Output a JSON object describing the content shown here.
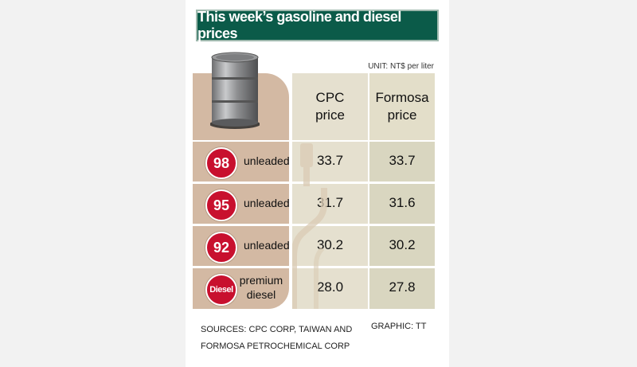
{
  "title": "This week’s gasoline and diesel prices",
  "unit": "UNIT: NT$ per liter",
  "headers": {
    "cpc": "CPC price",
    "formosa": "Formosa price"
  },
  "colors": {
    "title_bg": "#0b5b49",
    "badge_red": "#c8102e",
    "tan": "#d3b9a3",
    "column_light": "#e5e0cf",
    "column_dark": "#d9d6c0"
  },
  "chart_data": {
    "type": "table",
    "title": "This week’s gasoline and diesel prices",
    "unit": "UNIT: NT$ per liter",
    "columns": [
      "CPC price",
      "Formosa price"
    ],
    "rows": [
      {
        "badge": "98",
        "fuel": "unleaded",
        "cpc": "33.7",
        "formosa": "33.7"
      },
      {
        "badge": "95",
        "fuel": "unleaded",
        "cpc": "31.7",
        "formosa": "31.6"
      },
      {
        "badge": "92",
        "fuel": "unleaded",
        "cpc": "30.2",
        "formosa": "30.2"
      },
      {
        "badge": "Diesel",
        "fuel": "premium diesel",
        "cpc": "28.0",
        "formosa": "27.8"
      }
    ]
  },
  "footer": {
    "sources_line1": "SOURCES: CPC CORP, TAIWAN AND",
    "sources_line2": "FORMOSA PETROCHEMICAL CORP",
    "graphic": "GRAPHIC: TT"
  }
}
